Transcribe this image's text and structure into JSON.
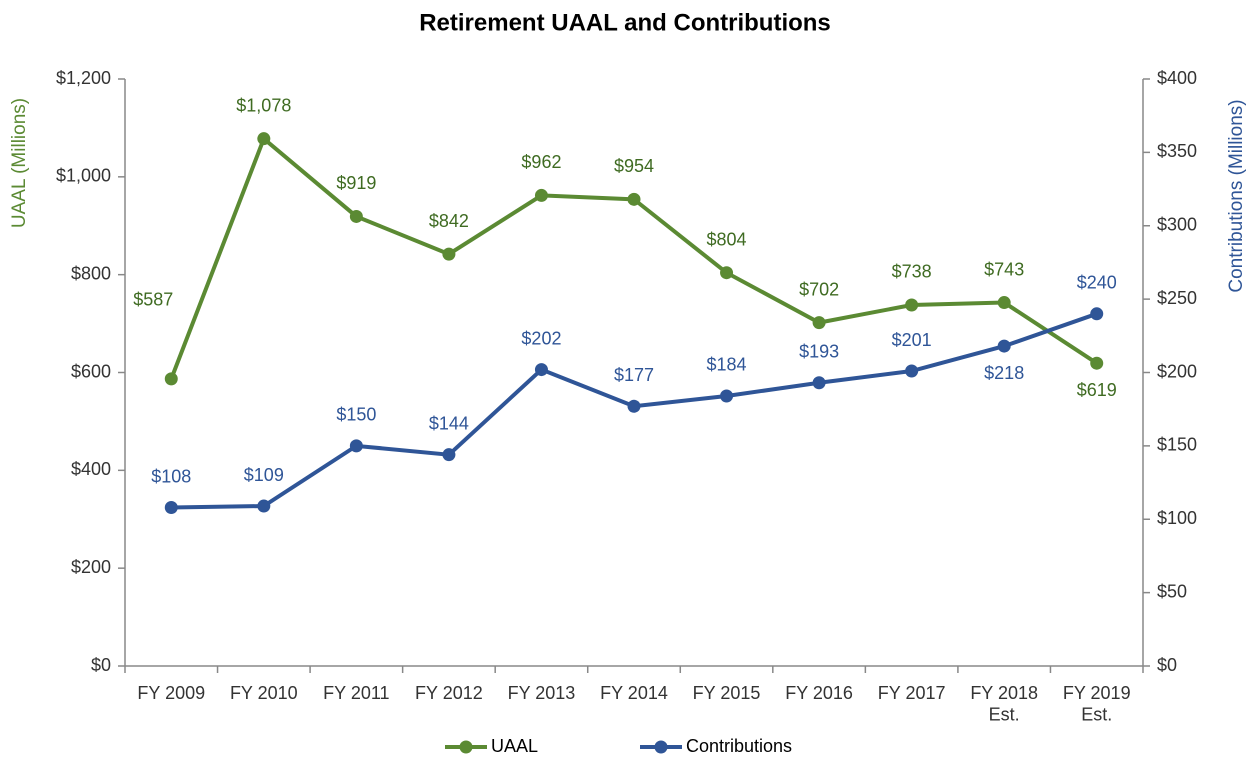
{
  "chart_data": {
    "type": "line",
    "title": "Retirement UAAL and Contributions",
    "categories": [
      "FY 2009",
      "FY 2010",
      "FY 2011",
      "FY 2012",
      "FY 2013",
      "FY 2014",
      "FY 2015",
      "FY 2016",
      "FY 2017",
      "FY 2018\nEst.",
      "FY 2019\nEst."
    ],
    "ylabel": "UAAL (Millions)",
    "y2label": "Contributions (Millions)",
    "ylim": [
      0,
      1200
    ],
    "yticks": [
      {
        "value": 0,
        "label": "$0"
      },
      {
        "value": 200,
        "label": "$200"
      },
      {
        "value": 400,
        "label": "$400"
      },
      {
        "value": 600,
        "label": "$600"
      },
      {
        "value": 800,
        "label": "$800"
      },
      {
        "value": 1000,
        "label": "$1,000"
      },
      {
        "value": 1200,
        "label": "$1,200"
      }
    ],
    "y2lim": [
      0,
      400
    ],
    "y2ticks": [
      {
        "value": 0,
        "label": "$0"
      },
      {
        "value": 50,
        "label": "$50"
      },
      {
        "value": 100,
        "label": "$100"
      },
      {
        "value": 150,
        "label": "$150"
      },
      {
        "value": 200,
        "label": "$200"
      },
      {
        "value": 250,
        "label": "$250"
      },
      {
        "value": 300,
        "label": "$300"
      },
      {
        "value": 350,
        "label": "$350"
      },
      {
        "value": 400,
        "label": "$400"
      }
    ],
    "legend": "bottom",
    "series": [
      {
        "name": "UAAL",
        "color": "#5b8a33",
        "values": [
          587,
          1078,
          919,
          842,
          962,
          954,
          804,
          702,
          738,
          743,
          619
        ],
        "value_labels": [
          "$587",
          "$1,078",
          "$919",
          "$842",
          "$962",
          "$954",
          "$804",
          "$702",
          "$738",
          "$743",
          "$619"
        ]
      },
      {
        "name": "Contributions",
        "color": "#2f5597",
        "axis": "y2",
        "values": [
          108,
          109,
          150,
          144,
          202,
          177,
          184,
          193,
          201,
          218,
          240
        ],
        "value_labels": [
          "$108",
          "$109",
          "$150",
          "$144",
          "$202",
          "$177",
          "$184",
          "$193",
          "$201",
          "$218",
          "$240"
        ]
      }
    ]
  }
}
